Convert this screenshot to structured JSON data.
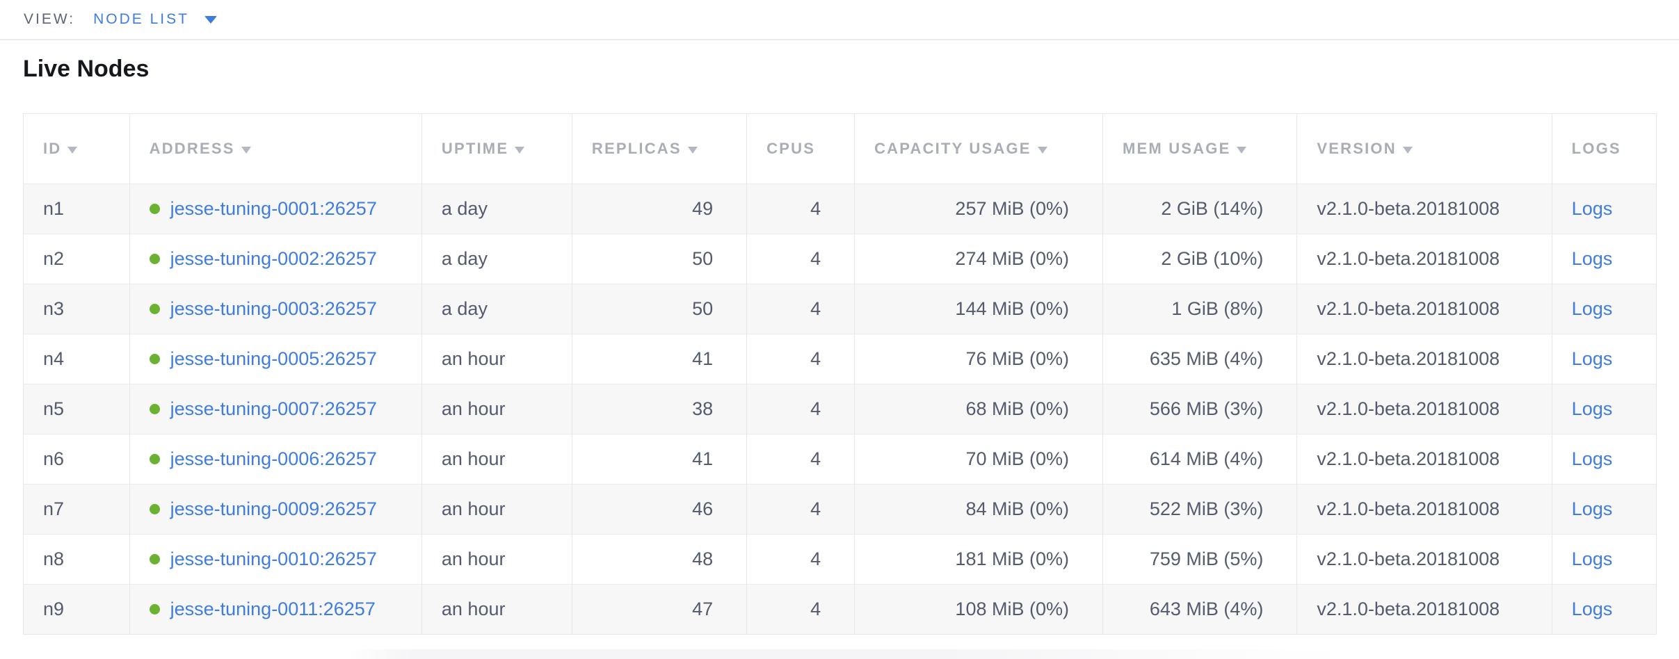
{
  "view_bar": {
    "label": "VIEW:",
    "selected": "NODE LIST"
  },
  "page": {
    "title": "Live Nodes"
  },
  "colors": {
    "accent_blue": "#3f7be0",
    "link_blue": "#3f7ce1",
    "healthy_green": "#6cb232",
    "header_gray": "#a8adb6",
    "body_text": "#535b6e",
    "row_alt_bg": "#f7f7f8"
  },
  "icons": {
    "view_caret": "caret-down-icon",
    "sort_caret": "sort-caret-icon",
    "node_status": "green-dot-icon"
  },
  "table": {
    "columns": [
      {
        "key": "id",
        "label": "ID",
        "sortable": true,
        "align": "left",
        "width": "6.5%",
        "type": "text"
      },
      {
        "key": "address",
        "label": "ADDRESS",
        "sortable": true,
        "align": "left",
        "width": "17.9%",
        "type": "address"
      },
      {
        "key": "uptime",
        "label": "UPTIME",
        "sortable": true,
        "align": "left",
        "width": "9.2%",
        "type": "text"
      },
      {
        "key": "replicas",
        "label": "REPLICAS",
        "sortable": true,
        "align": "right",
        "width": "10.7%",
        "type": "text"
      },
      {
        "key": "cpus",
        "label": "CPUS",
        "sortable": false,
        "align": "right",
        "width": "6.6%",
        "type": "text"
      },
      {
        "key": "capacity_usage",
        "label": "CAPACITY USAGE",
        "sortable": true,
        "align": "right",
        "width": "15.2%",
        "type": "text"
      },
      {
        "key": "mem_usage",
        "label": "MEM USAGE",
        "sortable": true,
        "align": "right",
        "width": "11.9%",
        "type": "text"
      },
      {
        "key": "version",
        "label": "VERSION",
        "sortable": true,
        "align": "left",
        "width": "15.6%",
        "type": "text"
      },
      {
        "key": "logs",
        "label": "LOGS",
        "sortable": false,
        "align": "left",
        "width": "6.4%",
        "type": "link"
      }
    ],
    "rows": [
      {
        "id": "n1",
        "address": "jesse-tuning-0001:26257",
        "uptime": "a day",
        "replicas": "49",
        "cpus": "4",
        "capacity_usage": "257 MiB (0%)",
        "mem_usage": "2 GiB (14%)",
        "version": "v2.1.0-beta.20181008",
        "logs": "Logs"
      },
      {
        "id": "n2",
        "address": "jesse-tuning-0002:26257",
        "uptime": "a day",
        "replicas": "50",
        "cpus": "4",
        "capacity_usage": "274 MiB (0%)",
        "mem_usage": "2 GiB (10%)",
        "version": "v2.1.0-beta.20181008",
        "logs": "Logs"
      },
      {
        "id": "n3",
        "address": "jesse-tuning-0003:26257",
        "uptime": "a day",
        "replicas": "50",
        "cpus": "4",
        "capacity_usage": "144 MiB (0%)",
        "mem_usage": "1 GiB (8%)",
        "version": "v2.1.0-beta.20181008",
        "logs": "Logs"
      },
      {
        "id": "n4",
        "address": "jesse-tuning-0005:26257",
        "uptime": "an hour",
        "replicas": "41",
        "cpus": "4",
        "capacity_usage": "76 MiB (0%)",
        "mem_usage": "635 MiB (4%)",
        "version": "v2.1.0-beta.20181008",
        "logs": "Logs"
      },
      {
        "id": "n5",
        "address": "jesse-tuning-0007:26257",
        "uptime": "an hour",
        "replicas": "38",
        "cpus": "4",
        "capacity_usage": "68 MiB (0%)",
        "mem_usage": "566 MiB (3%)",
        "version": "v2.1.0-beta.20181008",
        "logs": "Logs"
      },
      {
        "id": "n6",
        "address": "jesse-tuning-0006:26257",
        "uptime": "an hour",
        "replicas": "41",
        "cpus": "4",
        "capacity_usage": "70 MiB (0%)",
        "mem_usage": "614 MiB (4%)",
        "version": "v2.1.0-beta.20181008",
        "logs": "Logs"
      },
      {
        "id": "n7",
        "address": "jesse-tuning-0009:26257",
        "uptime": "an hour",
        "replicas": "46",
        "cpus": "4",
        "capacity_usage": "84 MiB (0%)",
        "mem_usage": "522 MiB (3%)",
        "version": "v2.1.0-beta.20181008",
        "logs": "Logs"
      },
      {
        "id": "n8",
        "address": "jesse-tuning-0010:26257",
        "uptime": "an hour",
        "replicas": "48",
        "cpus": "4",
        "capacity_usage": "181 MiB (0%)",
        "mem_usage": "759 MiB (5%)",
        "version": "v2.1.0-beta.20181008",
        "logs": "Logs"
      },
      {
        "id": "n9",
        "address": "jesse-tuning-0011:26257",
        "uptime": "an hour",
        "replicas": "47",
        "cpus": "4",
        "capacity_usage": "108 MiB (0%)",
        "mem_usage": "643 MiB (4%)",
        "version": "v2.1.0-beta.20181008",
        "logs": "Logs"
      }
    ]
  }
}
